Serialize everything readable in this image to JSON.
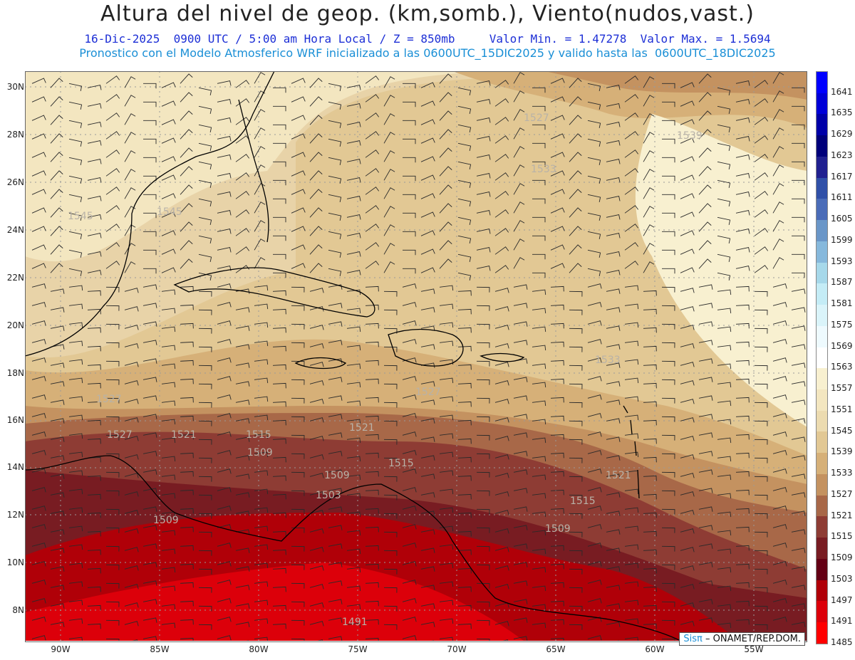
{
  "header": {
    "title": "Altura del nivel de geop. (km,somb.), Viento(nudos,vast.)",
    "line2": "16-Dic-2025  0900 UTC / 5:00 am Hora Local / Z = 850mb     Valor Min. = 1.47278  Valor Max. = 1.5694",
    "line3": "Pronostico con el Modelo Atmosferico WRF inicializado a las 0600UTC_15DIC2025 y valido hasta las  0600UTC_18DIC2025"
  },
  "axes": {
    "lat_labels": [
      "30N",
      "28N",
      "26N",
      "24N",
      "22N",
      "20N",
      "18N",
      "16N",
      "14N",
      "12N",
      "10N",
      "8N"
    ],
    "lon_labels": [
      "90W",
      "85W",
      "80W",
      "75W",
      "70W",
      "65W",
      "60W",
      "55W"
    ]
  },
  "colorbar": {
    "labels": [
      "1641",
      "1635",
      "1629",
      "1623",
      "1617",
      "1611",
      "1605",
      "1599",
      "1593",
      "1587",
      "1581",
      "1575",
      "1569",
      "1563",
      "1557",
      "1551",
      "1545",
      "1539",
      "1533",
      "1527",
      "1521",
      "1515",
      "1509",
      "1503",
      "1497",
      "1491",
      "1485"
    ],
    "colors": [
      "#0000ff",
      "#0000d8",
      "#0000a8",
      "#00007a",
      "#202090",
      "#3050a8",
      "#4a6cb8",
      "#6a96c8",
      "#86b8dc",
      "#a6d8ea",
      "#c4ecf6",
      "#daf4fa",
      "#eefafe",
      "#ffffff",
      "#f8f0d0",
      "#f3e6c0",
      "#ecdbb0",
      "#e2c894",
      "#d6b078",
      "#c49260",
      "#a86848",
      "#8e3c34",
      "#781c22",
      "#640014",
      "#b00008",
      "#dc000a",
      "#ff0000"
    ]
  },
  "contour_labels": [
    "1545",
    "1545",
    "1527",
    "1539",
    "1533",
    "1527",
    "1527",
    "1521",
    "1515",
    "1509",
    "1509",
    "1503",
    "1515",
    "1509",
    "1509",
    "1515",
    "1491",
    "1521",
    "1533",
    "1527",
    "1521"
  ],
  "credit": {
    "brand": "Sisπ",
    "text": " – ONAMET/REP.DOM."
  }
}
